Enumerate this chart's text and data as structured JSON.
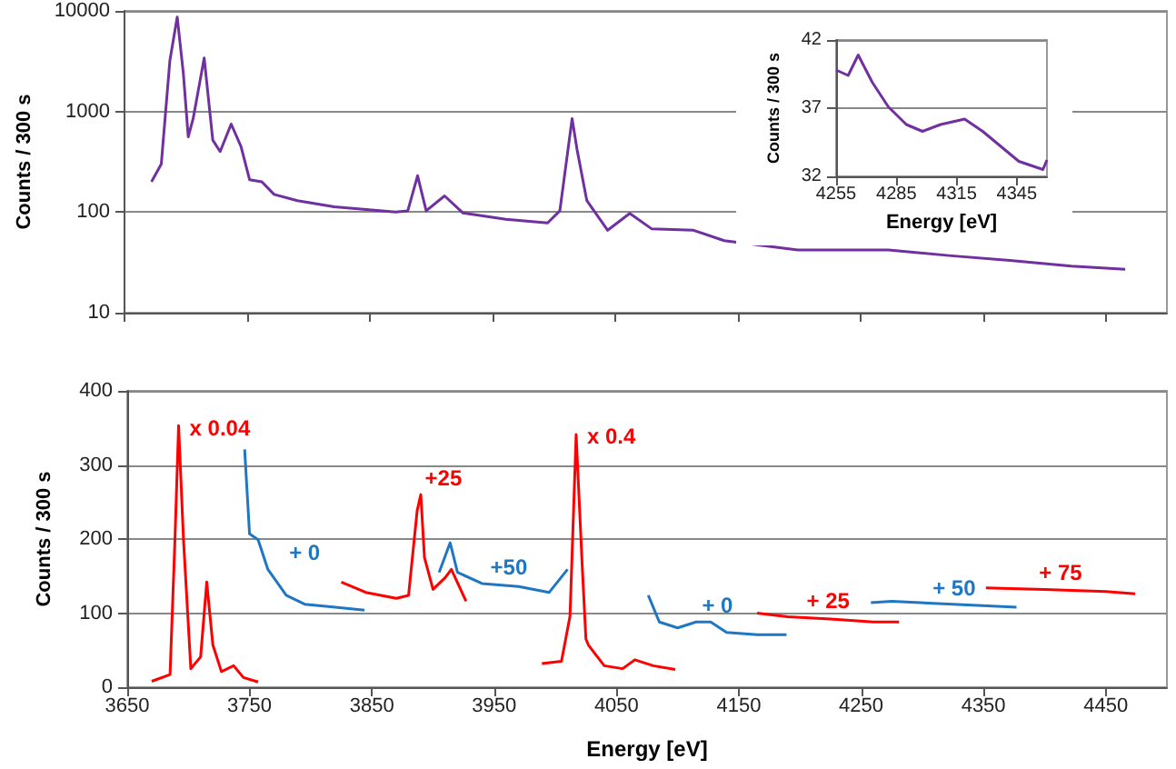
{
  "chart_data": [
    {
      "type": "line",
      "ylabel": "Counts / 300 s",
      "log": "y",
      "grid": "y",
      "tick_labels": "y",
      "legend": false,
      "xlim": [
        3650,
        4500
      ],
      "xticks": [
        3650,
        3750,
        3850,
        3950,
        4050,
        4150,
        4250,
        4350,
        4450
      ],
      "ylim": [
        10,
        10000
      ],
      "yticks": [
        10,
        100,
        1000,
        10000
      ],
      "series": [
        {
          "color": "#7030a0",
          "x": [
            3672,
            3680,
            3687,
            3693,
            3698,
            3702,
            3706,
            3715,
            3722,
            3728,
            3737,
            3745,
            3752,
            3762,
            3772,
            3791,
            3821,
            3871,
            3881,
            3889,
            3896,
            3911,
            3926,
            3961,
            3995,
            4005,
            4015,
            4019,
            4027,
            4044,
            4062,
            4080,
            4114,
            4139,
            4199,
            4273,
            4322,
            4372,
            4422,
            4466
          ],
          "values": [
            200,
            300,
            3200,
            8700,
            2400,
            560,
            850,
            3400,
            520,
            400,
            750,
            450,
            210,
            200,
            150,
            130,
            113,
            100,
            103,
            230,
            103,
            145,
            98,
            85,
            78,
            103,
            850,
            420,
            130,
            66,
            97,
            68,
            66,
            52,
            42,
            42,
            37,
            33,
            29,
            27
          ]
        }
      ]
    },
    {
      "type": "line",
      "xlabel": "Energy [eV]",
      "ylabel": "Counts / 300 s",
      "grid": "y",
      "legend": false,
      "xlim": [
        4255,
        4360
      ],
      "xticks": [
        4255,
        4285,
        4315,
        4345
      ],
      "ylim": [
        32,
        42
      ],
      "yticks": [
        32,
        37,
        42
      ],
      "series": [
        {
          "color": "#7030a0",
          "x": [
            4255,
            4261,
            4266,
            4273,
            4281,
            4290,
            4298,
            4307,
            4319,
            4328,
            4337,
            4346,
            4358,
            4360
          ],
          "values": [
            39.8,
            39.4,
            40.9,
            38.9,
            37.1,
            35.8,
            35.3,
            35.8,
            36.2,
            35.3,
            34.2,
            33.1,
            32.5,
            33.2
          ]
        }
      ]
    },
    {
      "type": "line",
      "xlabel": "Energy [eV]",
      "ylabel": "Counts / 300 s",
      "grid": "y",
      "legend": false,
      "xlim": [
        3650,
        4500
      ],
      "xticks": [
        3650,
        3750,
        3850,
        3950,
        4050,
        4150,
        4250,
        4350,
        4450
      ],
      "ylim": [
        0,
        400
      ],
      "yticks": [
        0,
        100,
        200,
        300,
        400
      ],
      "series": [
        {
          "name": "x 0.04",
          "color": "#ff0000",
          "x": [
            3670,
            3685,
            3689,
            3692,
            3696,
            3702,
            3710,
            3715,
            3720,
            3727,
            3737,
            3745,
            3757
          ],
          "values": [
            8,
            17,
            199,
            353,
            199,
            25,
            41,
            142,
            57,
            21,
            29,
            13,
            7
          ]
        },
        {
          "name": "+ 0",
          "color": "#1f77c4",
          "x": [
            3746,
            3750,
            3757,
            3765,
            3780,
            3795,
            3820,
            3844
          ],
          "values": [
            321,
            207,
            199,
            159,
            124,
            112,
            108,
            104
          ]
        },
        {
          "name": "+25",
          "color": "#ff0000",
          "x": [
            3825,
            3845,
            3870,
            3880,
            3887,
            3890,
            3893,
            3900,
            3910,
            3915,
            3927
          ],
          "values": [
            142,
            128,
            120,
            124,
            238,
            260,
            175,
            132,
            148,
            159,
            116
          ]
        },
        {
          "name": "+50",
          "color": "#1f77c4",
          "x": [
            3905,
            3914,
            3920,
            3940,
            3970,
            3995,
            4010
          ],
          "values": [
            155,
            195,
            155,
            140,
            136,
            128,
            159
          ]
        },
        {
          "name": "x 0.4",
          "color": "#ff0000",
          "x": [
            3989,
            4005,
            4012,
            4017,
            4022,
            4025,
            4027,
            4040,
            4055,
            4065,
            4080,
            4098
          ],
          "values": [
            32,
            35,
            96,
            341,
            163,
            65,
            57,
            29,
            25,
            37,
            29,
            24
          ]
        },
        {
          "name": "+ 0",
          "color": "#1f77c4",
          "x": [
            4076,
            4085,
            4100,
            4115,
            4127,
            4140,
            4165,
            4189
          ],
          "values": [
            124,
            88,
            80,
            88,
            88,
            74,
            71,
            71
          ]
        },
        {
          "name": "+ 25",
          "color": "#ff0000",
          "x": [
            4165,
            4190,
            4225,
            4260,
            4281
          ],
          "values": [
            100,
            95,
            92,
            88,
            88
          ]
        },
        {
          "name": "+ 50",
          "color": "#1f77c4",
          "x": [
            4258,
            4275,
            4325,
            4377
          ],
          "values": [
            114,
            116,
            112,
            108
          ]
        },
        {
          "name": "+ 75",
          "color": "#ff0000",
          "x": [
            4352,
            4400,
            4450,
            4474
          ],
          "values": [
            134,
            132,
            129,
            126
          ]
        }
      ]
    }
  ]
}
